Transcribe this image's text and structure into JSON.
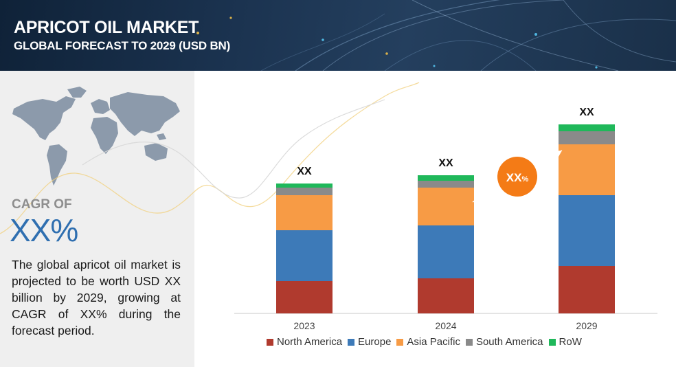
{
  "header": {
    "title": "APRICOT OIL MARKET",
    "subtitle": "GLOBAL FORECAST TO 2029 (USD BN)"
  },
  "left": {
    "cagr_label": "CAGR OF",
    "cagr_value": "XX%",
    "summary": "The global apricot oil market is projected to be worth USD XX billion by 2029, growing at CAGR of XX% during the forecast period."
  },
  "growth_badge": {
    "value": "XX",
    "unit": "%"
  },
  "colors": {
    "north_america": "#b03a2e",
    "europe": "#3d7ab8",
    "asia_pacific": "#f79b45",
    "south_america": "#8a8a8a",
    "row": "#1fb85a",
    "badge": "#f47b16"
  },
  "chart_data": {
    "type": "bar",
    "stacked": true,
    "categories": [
      "2023",
      "2024",
      "2029"
    ],
    "series": [
      {
        "name": "North America",
        "values": [
          47,
          51,
          69
        ]
      },
      {
        "name": "Europe",
        "values": [
          74,
          77,
          103
        ]
      },
      {
        "name": "Asia Pacific",
        "values": [
          51,
          55,
          74
        ]
      },
      {
        "name": "South America",
        "values": [
          11,
          10,
          19
        ]
      },
      {
        "name": "RoW",
        "values": [
          6,
          8,
          10
        ]
      }
    ],
    "total_labels": [
      "XX",
      "XX",
      "XX"
    ],
    "ylim": [
      0,
      300
    ],
    "grid": false,
    "legend": "bottom"
  }
}
